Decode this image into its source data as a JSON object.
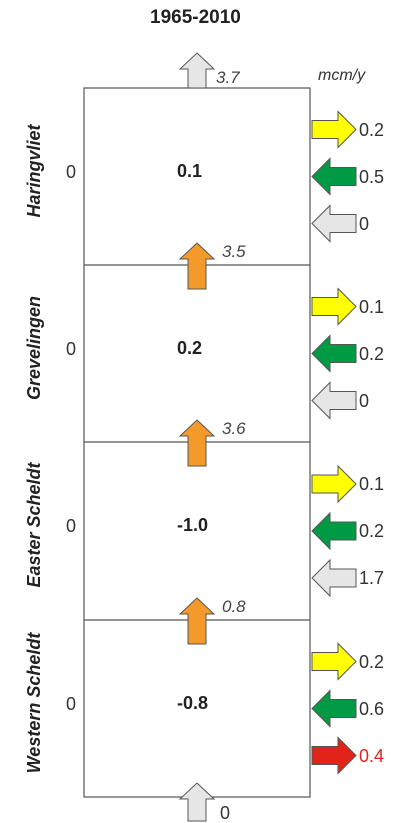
{
  "title": "1965-2010",
  "unit": "mcm/y",
  "top_outflow": "3.7",
  "bottom_inflow": "0",
  "colors": {
    "yellow": "#ffff00",
    "green": "#009a44",
    "gray": "#e6e6e6",
    "orange": "#f39a2b",
    "red": "#e2231a",
    "outline": "#555555"
  },
  "compartments": [
    {
      "name": "Haringvliet",
      "storage": "0.1",
      "left_value": "0",
      "side_flows": [
        {
          "color": "yellow",
          "direction": "out",
          "value": "0.2"
        },
        {
          "color": "green",
          "direction": "in",
          "value": "0.5"
        },
        {
          "color": "gray",
          "direction": "in",
          "value": "0"
        }
      ]
    },
    {
      "name": "Grevelingen",
      "storage": "0.2",
      "left_value": "0",
      "upward_flow": "3.5",
      "side_flows": [
        {
          "color": "yellow",
          "direction": "out",
          "value": "0.1"
        },
        {
          "color": "green",
          "direction": "in",
          "value": "0.2"
        },
        {
          "color": "gray",
          "direction": "in",
          "value": "0"
        }
      ]
    },
    {
      "name": "Easter Scheldt",
      "storage": "-1.0",
      "left_value": "0",
      "upward_flow": "3.6",
      "side_flows": [
        {
          "color": "yellow",
          "direction": "out",
          "value": "0.1"
        },
        {
          "color": "green",
          "direction": "in",
          "value": "0.2"
        },
        {
          "color": "gray",
          "direction": "in",
          "value": "1.7"
        }
      ]
    },
    {
      "name": "Western Scheldt",
      "storage": "-0.8",
      "left_value": "0",
      "upward_flow": "0.8",
      "side_flows": [
        {
          "color": "yellow",
          "direction": "out",
          "value": "0.2"
        },
        {
          "color": "green",
          "direction": "in",
          "value": "0.6"
        },
        {
          "color": "red",
          "direction": "out",
          "value": "0.4"
        }
      ]
    }
  ]
}
